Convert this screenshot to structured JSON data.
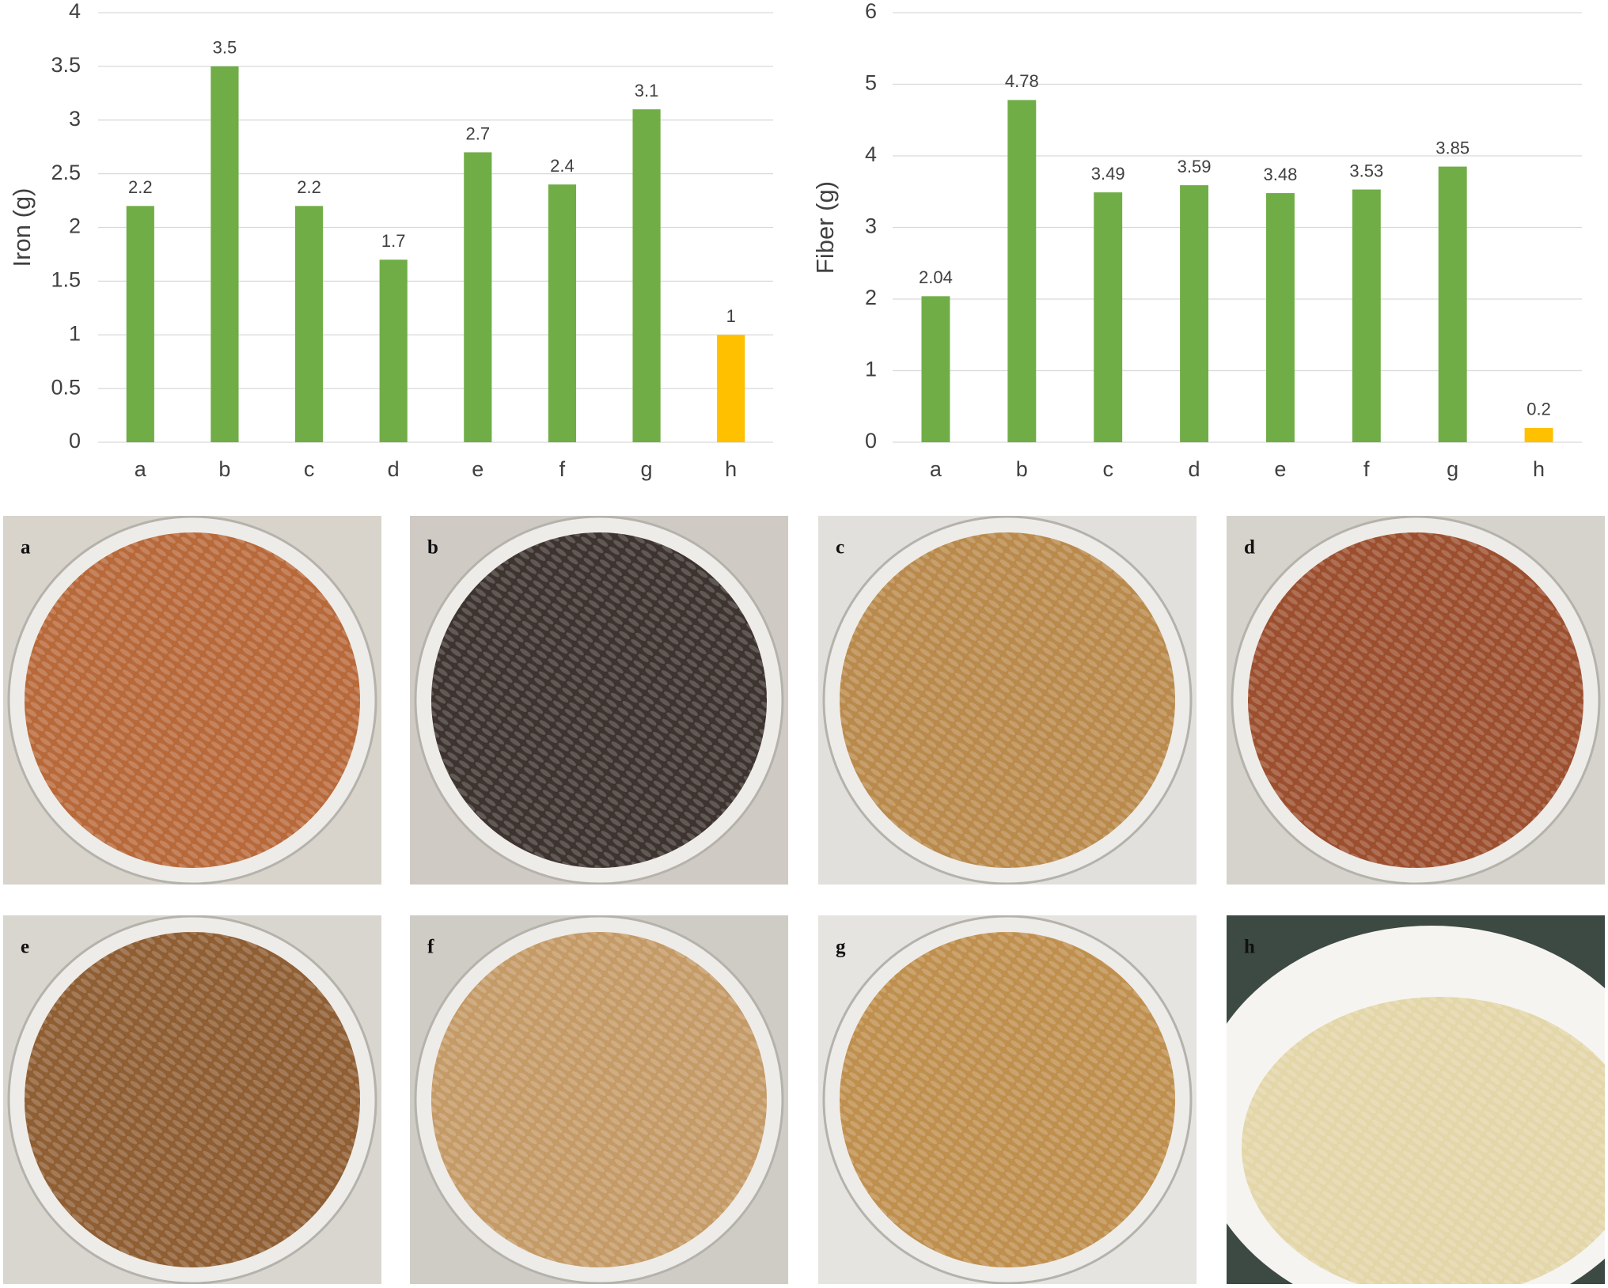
{
  "chart_data": [
    {
      "type": "bar",
      "y_label": "Iron (g)",
      "categories": [
        "a",
        "b",
        "c",
        "d",
        "e",
        "f",
        "g",
        "h"
      ],
      "values": [
        2.2,
        3.5,
        2.2,
        1.7,
        2.7,
        2.4,
        3.1,
        1
      ],
      "colors": [
        "#70ad47",
        "#70ad47",
        "#70ad47",
        "#70ad47",
        "#70ad47",
        "#70ad47",
        "#70ad47",
        "#ffc000"
      ],
      "ylim": [
        0,
        4
      ],
      "yticks": [
        0,
        0.5,
        1,
        1.5,
        2,
        2.5,
        3,
        3.5,
        4
      ],
      "grid": true
    },
    {
      "type": "bar",
      "y_label": "Fiber (g)",
      "categories": [
        "a",
        "b",
        "c",
        "d",
        "e",
        "f",
        "g",
        "h"
      ],
      "values": [
        2.04,
        4.78,
        3.49,
        3.59,
        3.48,
        3.53,
        3.85,
        0.2
      ],
      "colors": [
        "#70ad47",
        "#70ad47",
        "#70ad47",
        "#70ad47",
        "#70ad47",
        "#70ad47",
        "#70ad47",
        "#ffc000"
      ],
      "ylim": [
        0,
        6
      ],
      "yticks": [
        0,
        1,
        2,
        3,
        4,
        5,
        6
      ],
      "grid": true
    }
  ],
  "photos": [
    "a",
    "b",
    "c",
    "d",
    "e",
    "f",
    "g",
    "h"
  ]
}
